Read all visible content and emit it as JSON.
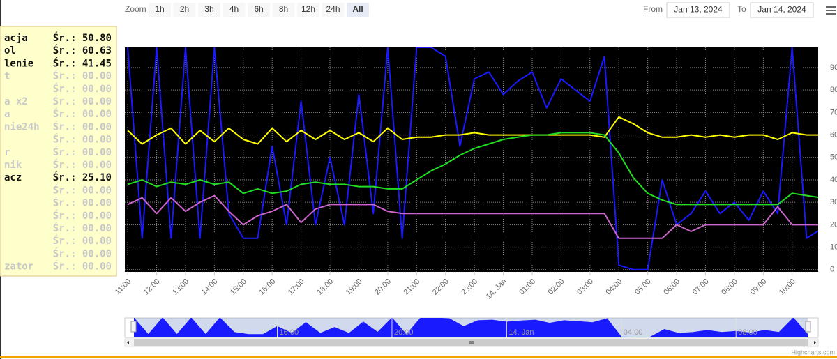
{
  "toolbar": {
    "zoom_label": "Zoom",
    "zoom_buttons": [
      "1h",
      "2h",
      "3h",
      "4h",
      "6h",
      "8h",
      "12h",
      "24h",
      "All"
    ],
    "selected": 8,
    "from_label": "From",
    "from": "Jan 13, 2024",
    "to_label": "To",
    "to": "Jan 14, 2024"
  },
  "legend": [
    {
      "name": "acja",
      "avg": "Śr.: 50.80",
      "active": true
    },
    {
      "name": "ol",
      "avg": "Śr.: 60.63",
      "active": true
    },
    {
      "name": "lenie",
      "avg": "Śr.: 41.45",
      "active": true
    },
    {
      "name": "t",
      "avg": "Śr.: 00.00",
      "active": false
    },
    {
      "name": null,
      "avg": "Śr.: 00.00",
      "active": false
    },
    {
      "name": "a x2",
      "avg": "Śr.: 00.00",
      "active": false
    },
    {
      "name": "a",
      "avg": "Śr.: 00.00",
      "active": false
    },
    {
      "name": "nie24h",
      "avg": "Śr.: 00.00",
      "active": false
    },
    {
      "name": null,
      "avg": "Śr.: 00.00",
      "active": false
    },
    {
      "name": "r",
      "avg": "Śr.: 00.00",
      "active": false
    },
    {
      "name": "nik",
      "avg": "Śr.: 00.00",
      "active": false
    },
    {
      "name": "acz",
      "avg": "Śr.: 25.10",
      "active": true
    },
    {
      "name": null,
      "avg": "Śr.: 00.00",
      "active": false
    },
    {
      "name": null,
      "avg": "Śr.: 00.00",
      "active": false
    },
    {
      "name": null,
      "avg": "Śr.: 00.00",
      "active": false
    },
    {
      "name": null,
      "avg": "Śr.: 00.00",
      "active": false
    },
    {
      "name": null,
      "avg": "Śr.: 00.00",
      "active": false
    },
    {
      "name": null,
      "avg": "Śr.: 00.00",
      "active": false
    },
    {
      "name": "zator",
      "avg": "Śr.: 00.00",
      "active": false
    }
  ],
  "chart_data": {
    "type": "line",
    "background": "#000000",
    "grid": true,
    "x": [
      11,
      11.5,
      12,
      12.5,
      13,
      13.5,
      14,
      14.5,
      15,
      15.5,
      16,
      16.5,
      17,
      17.5,
      18,
      18.5,
      19,
      19.5,
      20,
      20.5,
      21,
      21.5,
      22,
      22.5,
      23,
      23.5,
      24,
      24.5,
      25,
      25.5,
      26,
      26.5,
      27,
      27.5,
      28,
      28.5,
      29,
      29.5,
      30,
      30.5,
      31,
      31.5,
      32,
      32.5,
      33,
      33.5,
      34,
      34.5,
      35
    ],
    "xlim": [
      10.9,
      34.9
    ],
    "xticks": [
      {
        "value": 11,
        "label": "11:00"
      },
      {
        "value": 12,
        "label": "12:00"
      },
      {
        "value": 13,
        "label": "13:00"
      },
      {
        "value": 14,
        "label": "14:00"
      },
      {
        "value": 15,
        "label": "15:00"
      },
      {
        "value": 16,
        "label": "16:00"
      },
      {
        "value": 17,
        "label": "17:00"
      },
      {
        "value": 18,
        "label": "18:00"
      },
      {
        "value": 19,
        "label": "19:00"
      },
      {
        "value": 20,
        "label": "20:00"
      },
      {
        "value": 21,
        "label": "21:00"
      },
      {
        "value": 22,
        "label": "22:00"
      },
      {
        "value": 23,
        "label": "23:00"
      },
      {
        "value": 24,
        "label": "14. Jan"
      },
      {
        "value": 25,
        "label": "01:00"
      },
      {
        "value": 26,
        "label": "02:00"
      },
      {
        "value": 27,
        "label": "03:00"
      },
      {
        "value": 28,
        "label": "04:00"
      },
      {
        "value": 29,
        "label": "05:00"
      },
      {
        "value": 30,
        "label": "06:00"
      },
      {
        "value": 31,
        "label": "07:00"
      },
      {
        "value": 32,
        "label": "08:00"
      },
      {
        "value": 33,
        "label": "09:00"
      },
      {
        "value": 34,
        "label": "10:00"
      }
    ],
    "ylim": [
      -1,
      99
    ],
    "yticks": [
      0,
      10,
      20,
      30,
      40,
      50,
      60,
      70,
      80,
      90
    ],
    "series": [
      {
        "color": "#1a1aff",
        "values": [
          99,
          14,
          99,
          14,
          99,
          14,
          99,
          25,
          14,
          14,
          55,
          20,
          75,
          20,
          50,
          20,
          78,
          25,
          99,
          14,
          99,
          99,
          95,
          55,
          85,
          88,
          78,
          84,
          88,
          72,
          85,
          80,
          75,
          95,
          2,
          0,
          0,
          40,
          20,
          25,
          35,
          25,
          30,
          22,
          35,
          25,
          99,
          14,
          18
        ]
      },
      {
        "color": "#ffff00",
        "values": [
          62,
          56,
          60,
          63,
          56,
          62,
          57,
          63,
          58,
          56,
          63,
          57,
          62,
          58,
          62,
          58,
          61,
          57,
          63,
          58,
          59,
          59,
          60,
          60,
          61,
          60,
          60,
          60,
          60,
          60,
          60,
          60,
          60,
          59,
          68,
          65,
          61,
          59,
          59,
          60,
          59,
          60,
          59,
          60,
          60,
          58,
          61,
          60,
          60
        ]
      },
      {
        "color": "#22dd22",
        "values": [
          38,
          40,
          37,
          39,
          38,
          40,
          38,
          39,
          34,
          36,
          34,
          35,
          38,
          39,
          38,
          38,
          37,
          37,
          36,
          36,
          40,
          44,
          47,
          51,
          54,
          56,
          58,
          59,
          60,
          60,
          61,
          61,
          61,
          60,
          52,
          41,
          34,
          31,
          29,
          29,
          29,
          29,
          29,
          29,
          29,
          29,
          34,
          33,
          32
        ]
      },
      {
        "color": "#cc66cc",
        "values": [
          29,
          32,
          25,
          32,
          26,
          30,
          33,
          26,
          20,
          24,
          26,
          29,
          21,
          27,
          29,
          29,
          29,
          29,
          26,
          25,
          25,
          25,
          25,
          25,
          25,
          25,
          25,
          25,
          25,
          25,
          25,
          25,
          25,
          25,
          14,
          14,
          14,
          14,
          20,
          17,
          20,
          20,
          20,
          20,
          20,
          28,
          20,
          20,
          20
        ]
      }
    ]
  },
  "navigator": {
    "series": 0,
    "color": "#1a1aff",
    "xlim": [
      11,
      34.5
    ],
    "xticks": [
      {
        "value": 16,
        "label": "16:00"
      },
      {
        "value": 20,
        "label": "20:00"
      },
      {
        "value": 24,
        "label": "14. Jan"
      },
      {
        "value": 28,
        "label": "04:00"
      },
      {
        "value": 32,
        "label": "08:00"
      }
    ]
  },
  "credits": "Highcharts.com"
}
